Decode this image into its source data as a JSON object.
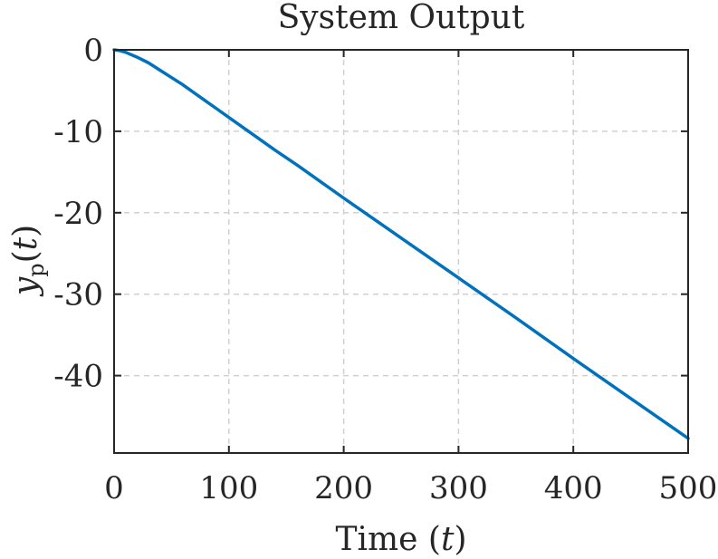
{
  "chart_data": {
    "type": "line",
    "title": "System Output",
    "xlabel": {
      "prefix": "Time (",
      "var": "t",
      "suffix": ")"
    },
    "ylabel": {
      "var": "y",
      "sub": "p",
      "arg": "t"
    },
    "xlim": [
      0,
      500
    ],
    "ylim": [
      -49.5,
      0
    ],
    "xticks": [
      0,
      100,
      200,
      300,
      400,
      500
    ],
    "yticks": [
      0,
      -10,
      -20,
      -30,
      -40
    ],
    "grid": true,
    "colors": {
      "line": "#0072BD",
      "grid": "#d0d0d0",
      "axis": "#262626"
    },
    "series": [
      {
        "x": [
          0,
          5,
          10,
          20,
          30,
          40,
          50,
          60,
          70,
          80,
          90,
          100,
          120,
          140,
          160,
          180,
          200,
          250,
          300,
          350,
          400,
          450,
          500
        ],
        "y": [
          0,
          -0.1,
          -0.3,
          -0.9,
          -1.6,
          -2.5,
          -3.4,
          -4.3,
          -5.3,
          -6.3,
          -7.3,
          -8.3,
          -10.3,
          -12.3,
          -14.2,
          -16.2,
          -18.2,
          -23.1,
          -28.0,
          -32.9,
          -37.9,
          -42.8,
          -47.7
        ]
      }
    ]
  }
}
